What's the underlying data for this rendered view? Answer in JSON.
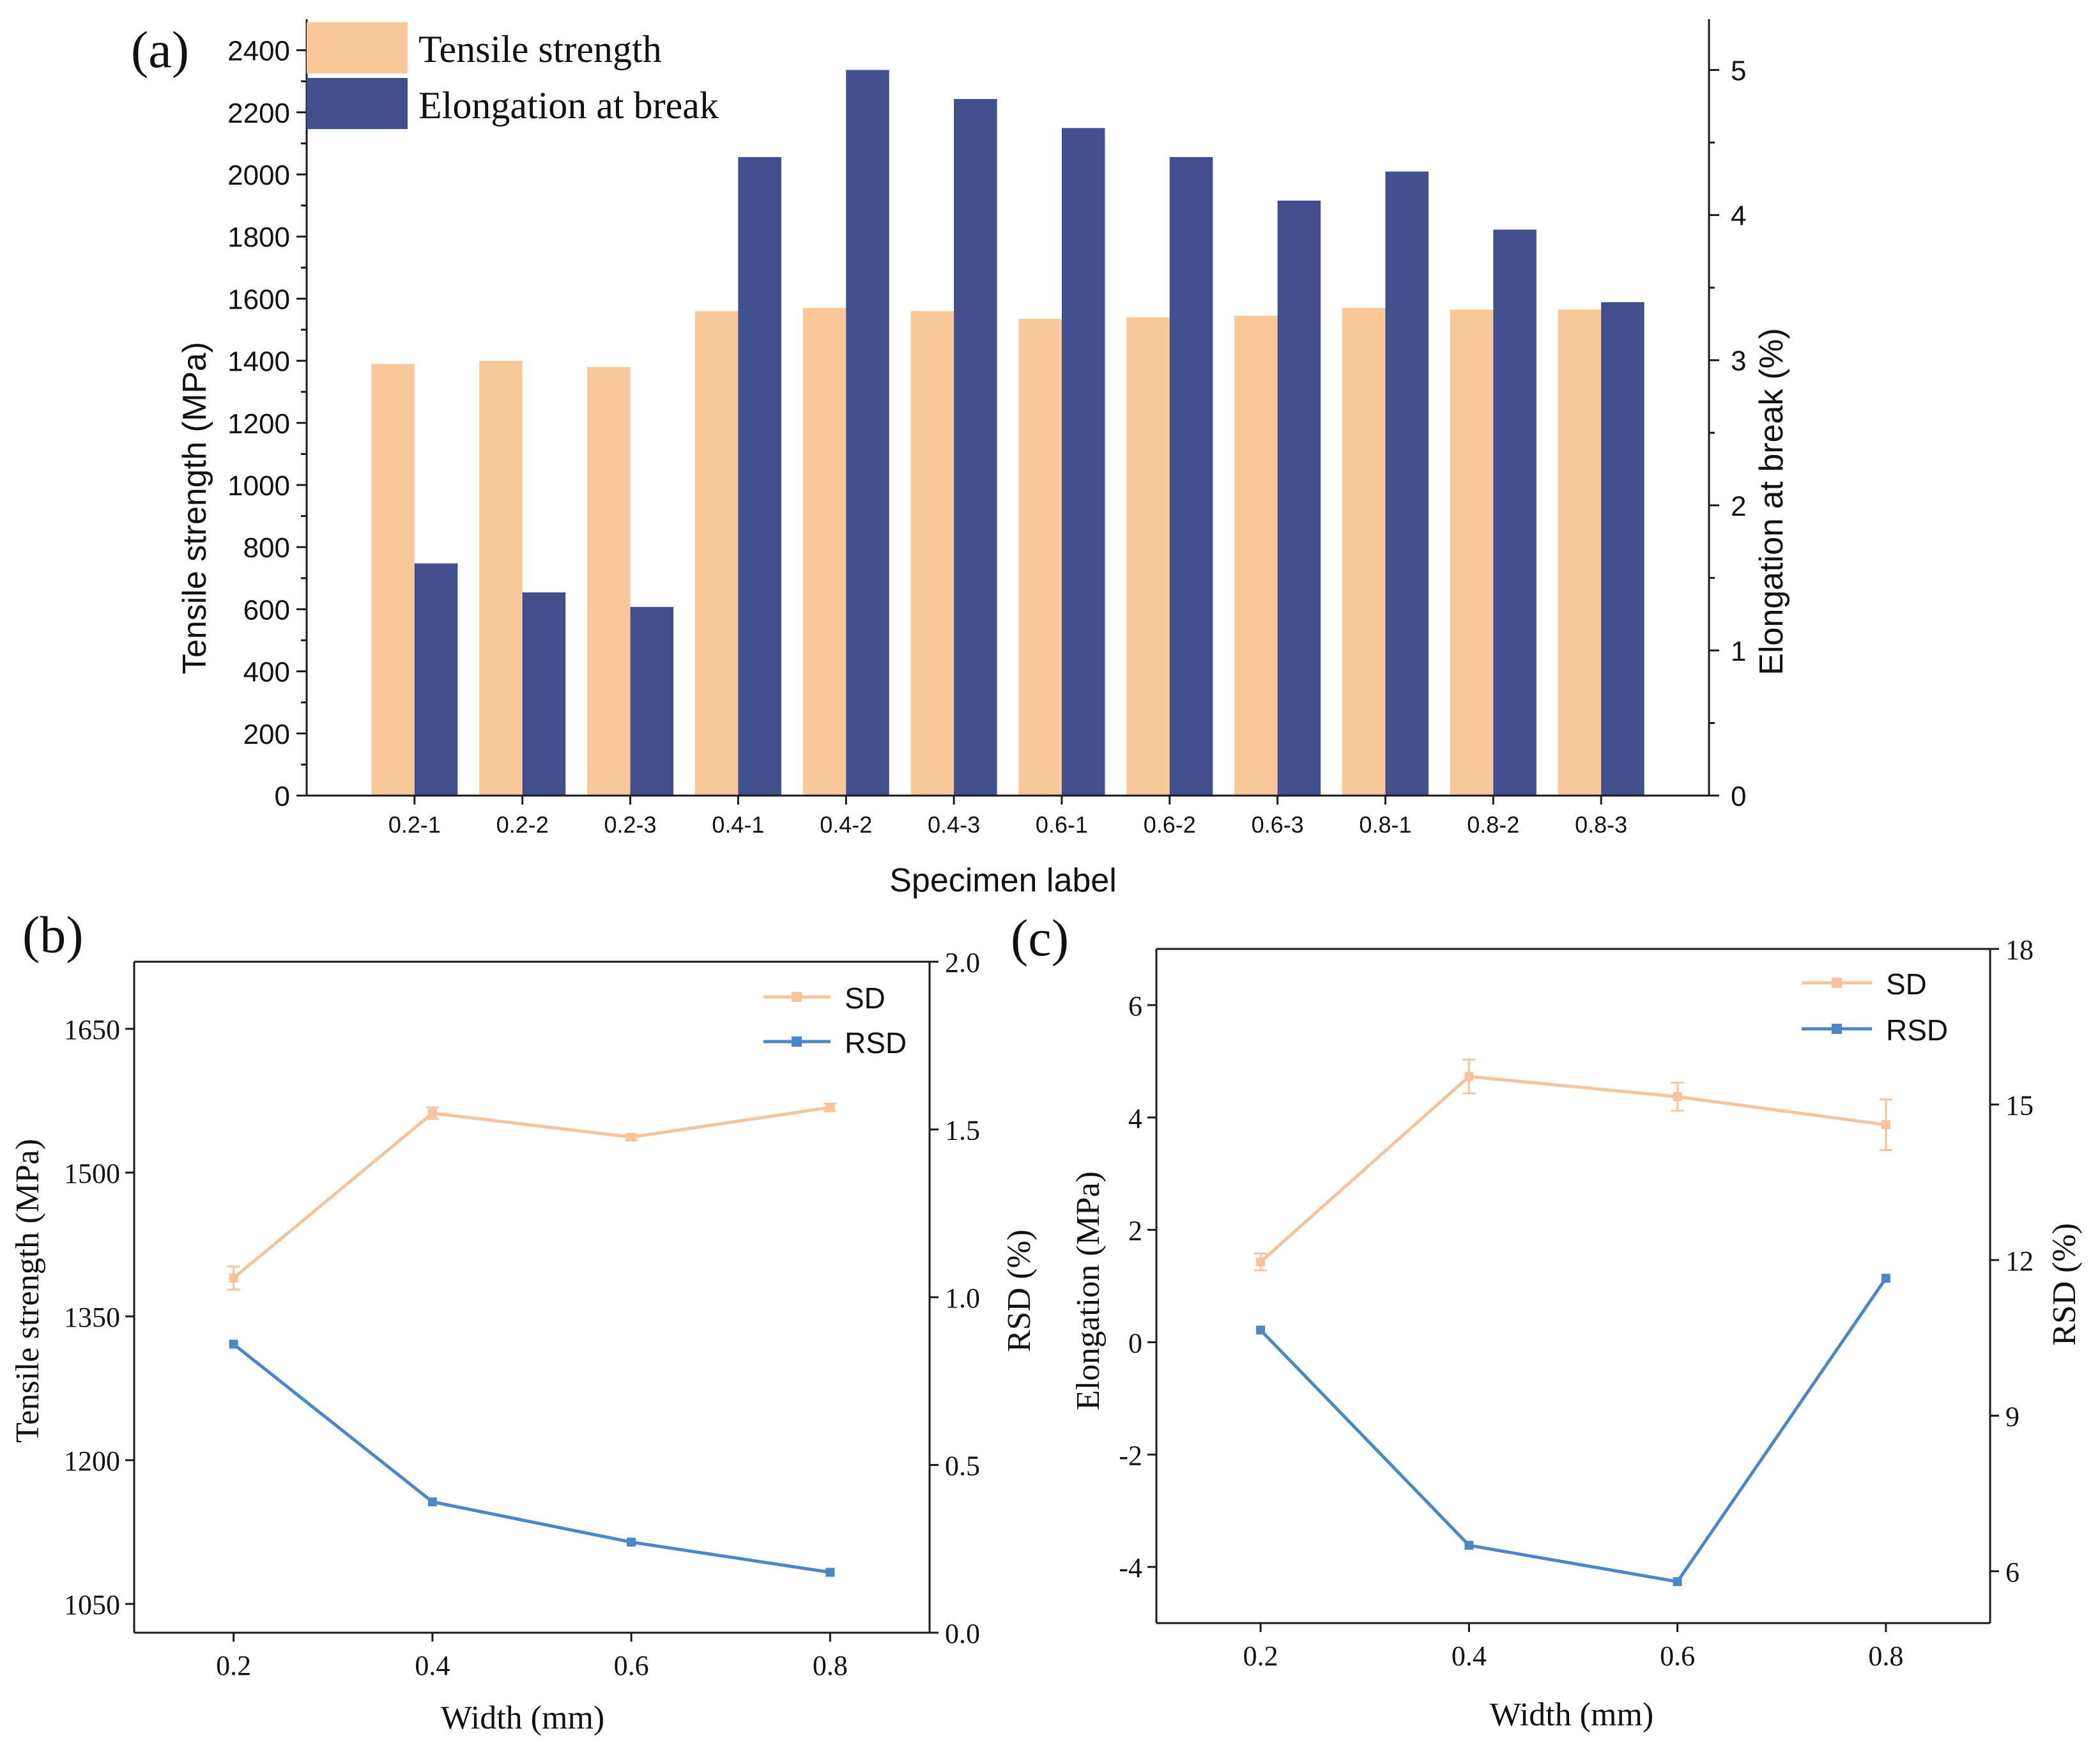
{
  "colors": {
    "tensile": "#FAC898",
    "elongation": "#41508C",
    "sd_line": "#F8C39A",
    "rsd_line": "#4A86C8",
    "axis": "#1a1a1a"
  },
  "chart_data": [
    {
      "panel_label": "(a)",
      "type": "bar",
      "title": "",
      "xlabel": "Specimen label",
      "ylabel_left": "Tensile strength (MPa)",
      "ylabel_right": "Elongation at break (%)",
      "categories": [
        "0.2-1",
        "0.2-2",
        "0.2-3",
        "0.4-1",
        "0.4-2",
        "0.4-3",
        "0.6-1",
        "0.6-2",
        "0.6-3",
        "0.8-1",
        "0.8-2",
        "0.8-3"
      ],
      "ylim_left": [
        0,
        2500
      ],
      "ylim_right": [
        0,
        5.35
      ],
      "yticks_left": [
        0,
        200,
        400,
        600,
        800,
        1000,
        1200,
        1400,
        1600,
        1800,
        2000,
        2200,
        2400
      ],
      "yticks_right": [
        0,
        1,
        2,
        3,
        4,
        5
      ],
      "legend_position": "top-left",
      "series": [
        {
          "name": "Tensile strength",
          "axis": "left",
          "values": [
            1390,
            1400,
            1380,
            1560,
            1570,
            1560,
            1535,
            1540,
            1545,
            1570,
            1565,
            1565
          ]
        },
        {
          "name": "Elongation at break",
          "axis": "right",
          "values": [
            1.6,
            1.4,
            1.3,
            4.4,
            5.0,
            4.8,
            4.6,
            4.4,
            4.1,
            4.3,
            3.9,
            3.4
          ]
        }
      ]
    },
    {
      "panel_label": "(b)",
      "type": "line",
      "xlabel": "Width (mm)",
      "ylabel_left": "Tensile strength (MPa)",
      "ylabel_right": "RSD (%)",
      "x": [
        0.2,
        0.4,
        0.6,
        0.8
      ],
      "xticks": [
        "0.2",
        "0.4",
        "0.6",
        "0.8"
      ],
      "xlim": [
        0.1,
        0.9
      ],
      "ylim_left": [
        1020,
        1720
      ],
      "ylim_right": [
        0.0,
        2.0
      ],
      "yticks_left": [
        "1050",
        "1200",
        "1350",
        "1500",
        "1650"
      ],
      "yticks_right": [
        "0.0",
        "0.5",
        "1.0",
        "1.5",
        "2.0"
      ],
      "legend_position": "top-right",
      "series": [
        {
          "name": "SD",
          "axis": "left",
          "values": [
            1390,
            1562,
            1537,
            1568
          ],
          "errors": [
            12,
            6,
            3,
            4
          ]
        },
        {
          "name": "RSD",
          "axis": "right",
          "values": [
            0.86,
            0.39,
            0.27,
            0.18
          ]
        }
      ]
    },
    {
      "panel_label": "(c)",
      "type": "line",
      "xlabel": "Width (mm)",
      "ylabel_left": "Elongation (MPa)",
      "ylabel_right": "RSD (%)",
      "x": [
        0.2,
        0.4,
        0.6,
        0.8
      ],
      "xticks": [
        "0.2",
        "0.4",
        "0.6",
        "0.8"
      ],
      "xlim": [
        0.1,
        0.9
      ],
      "ylim_left": [
        -5.0,
        7.0
      ],
      "ylim_right": [
        5.0,
        18.0
      ],
      "yticks_left": [
        "-4",
        "-2",
        "0",
        "2",
        "4",
        "6"
      ],
      "yticks_right": [
        "6",
        "9",
        "12",
        "15",
        "18"
      ],
      "legend_position": "top-right",
      "series": [
        {
          "name": "SD",
          "axis": "left",
          "values": [
            1.43,
            4.73,
            4.37,
            3.87
          ],
          "errors": [
            0.15,
            0.3,
            0.25,
            0.45
          ]
        },
        {
          "name": "RSD",
          "axis": "right",
          "values": [
            10.65,
            6.5,
            5.8,
            11.65
          ]
        }
      ]
    }
  ]
}
